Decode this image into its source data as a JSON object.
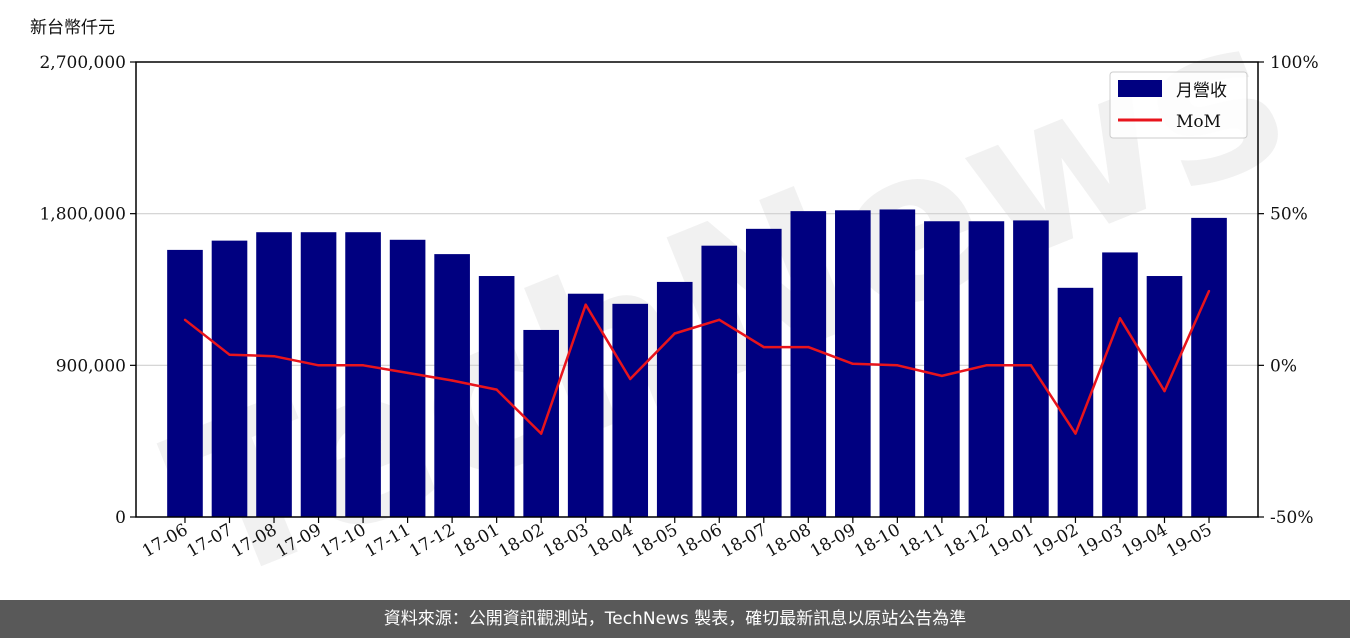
{
  "chart_data": {
    "type": "bar",
    "unit_label": "新台幣仟元",
    "categories": [
      "17-06",
      "17-07",
      "17-08",
      "17-09",
      "17-10",
      "17-11",
      "17-12",
      "18-01",
      "18-02",
      "18-03",
      "18-04",
      "18-05",
      "18-06",
      "18-07",
      "18-08",
      "18-09",
      "18-10",
      "18-11",
      "18-12",
      "19-01",
      "19-02",
      "19-03",
      "19-04",
      "19-05"
    ],
    "series": [
      {
        "name": "月營收",
        "type": "bar",
        "axis": "left",
        "color": "#000080",
        "values": [
          1585000,
          1640000,
          1690000,
          1690000,
          1690000,
          1645000,
          1560000,
          1430000,
          1110000,
          1325000,
          1265000,
          1395000,
          1610000,
          1710000,
          1815000,
          1820000,
          1825000,
          1755000,
          1755000,
          1760000,
          1360000,
          1570000,
          1430000,
          1775000
        ]
      },
      {
        "name": "MoM",
        "type": "line",
        "axis": "right",
        "color": "#e8141c",
        "values": [
          15,
          3.5,
          3,
          0,
          0,
          -2.5,
          -5,
          -8,
          -22.5,
          20,
          -4.5,
          10.5,
          15,
          6,
          6,
          0.5,
          0,
          -3.5,
          0,
          0,
          -22.5,
          15.5,
          -8.5,
          24.5
        ]
      }
    ],
    "ylim": [
      0,
      2700000
    ],
    "y_ticks": [
      "0",
      "900,000",
      "1,800,000",
      "2,700,000"
    ],
    "y2lim": [
      -50,
      100
    ],
    "y2_ticks": [
      "-50%",
      "0%",
      "50%",
      "100%"
    ],
    "grid": "horizontal",
    "legend_position": "top-right"
  },
  "watermark": "TechNews",
  "footer": {
    "source_text": "資料來源：公開資訊觀測站，TechNews 製表，確切最新訊息以原站公告為準"
  }
}
